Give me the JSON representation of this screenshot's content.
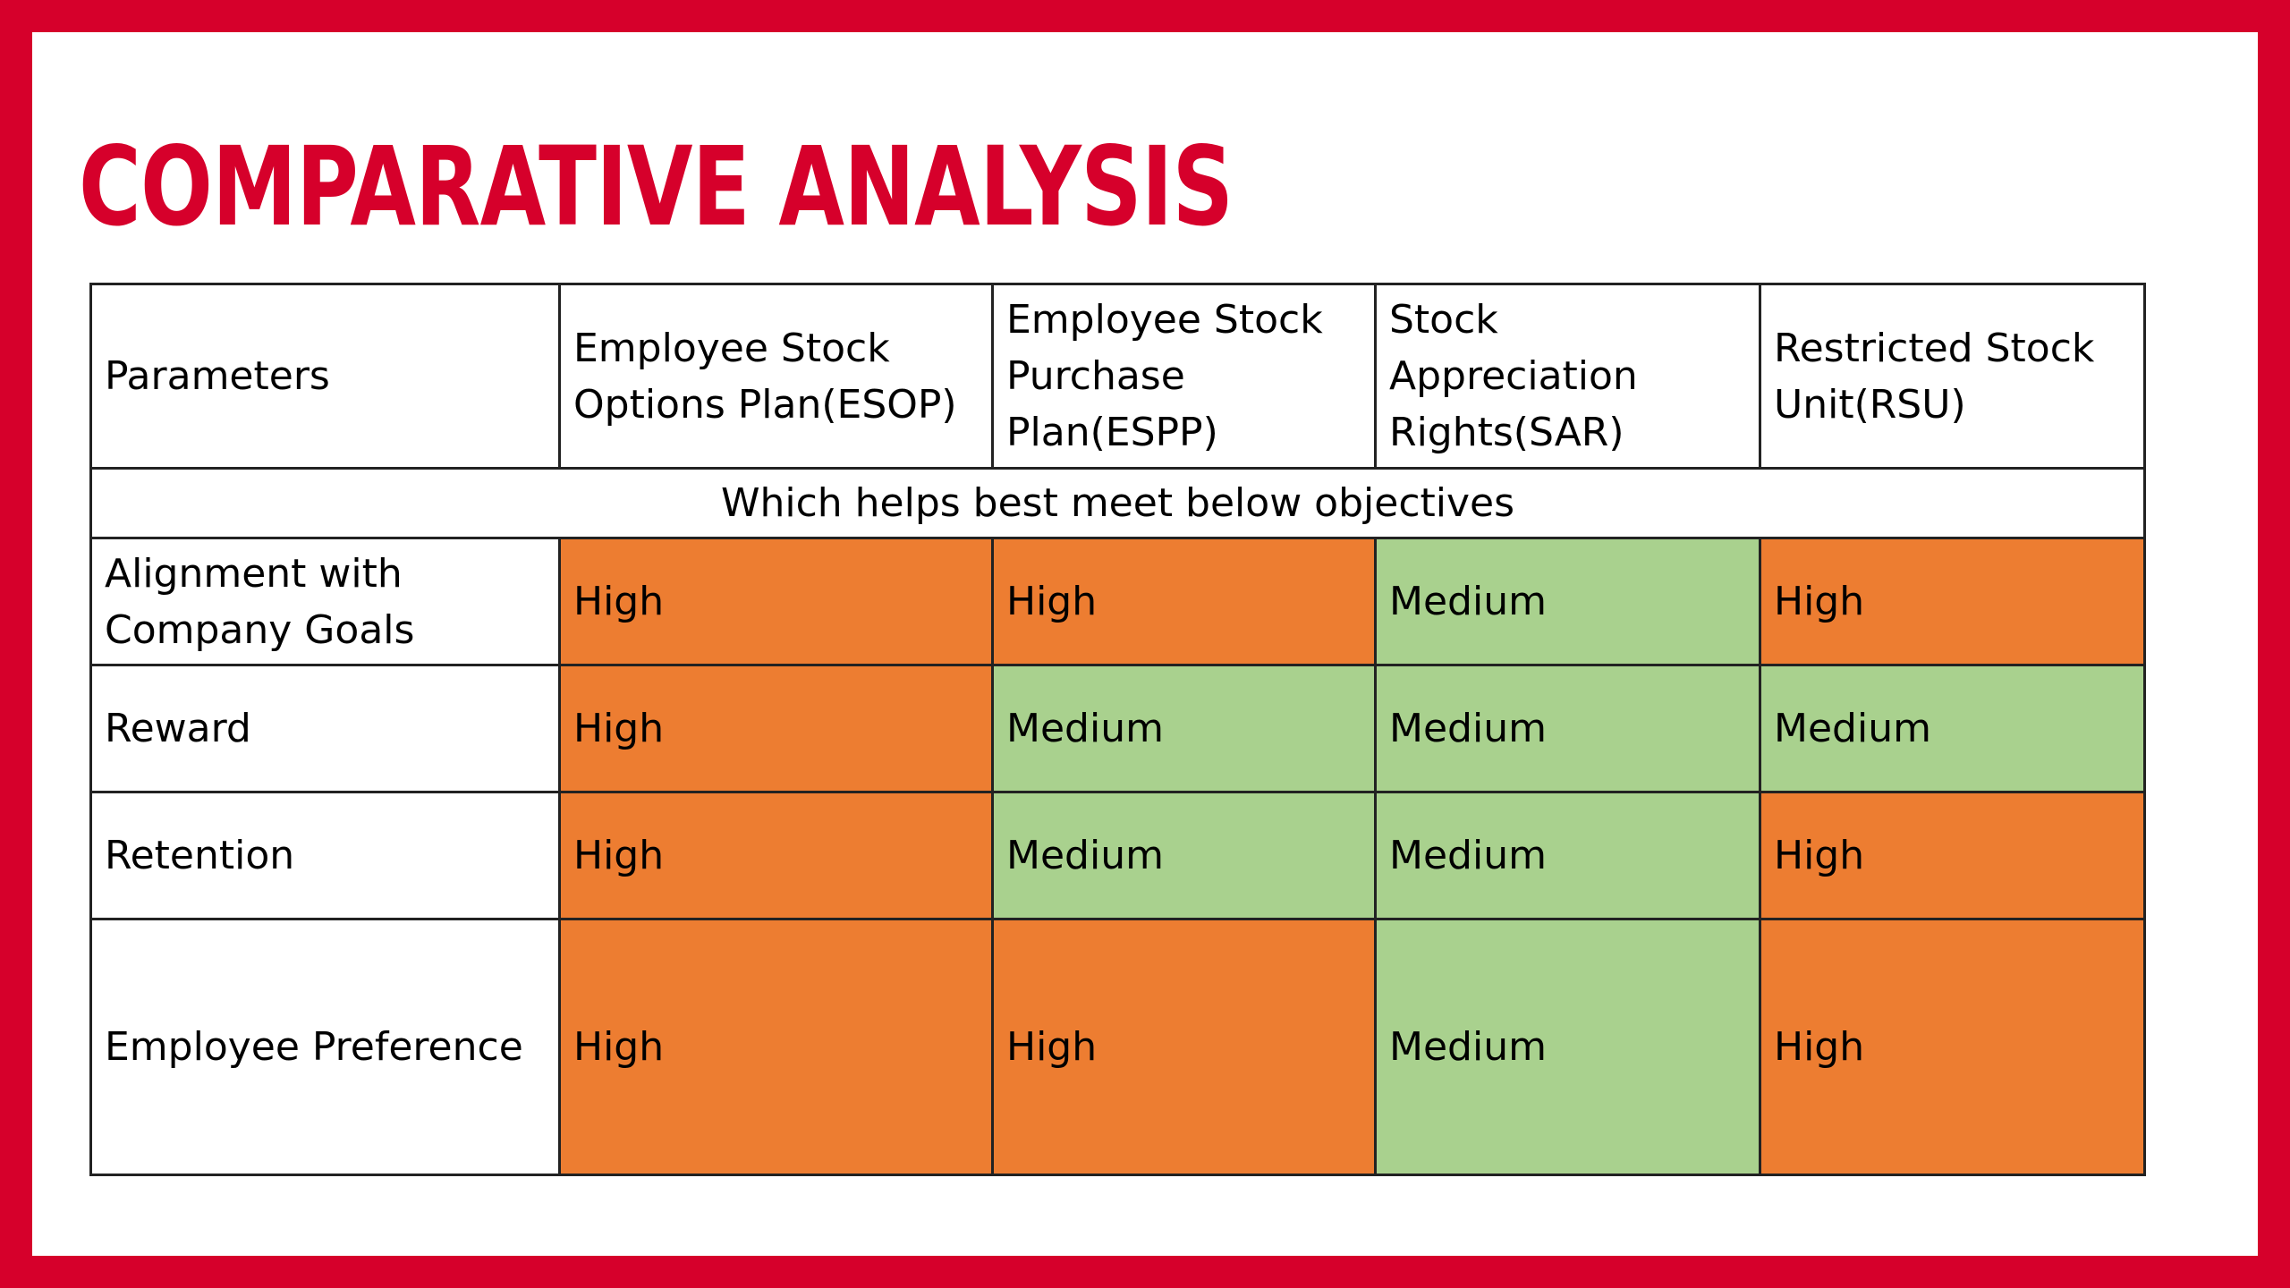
{
  "title": "COMPARATIVE ANALYSIS",
  "table": {
    "headers": [
      "Parameters",
      "Employee Stock Options Plan(ESOP)",
      "Employee Stock Purchase Plan(ESPP)",
      "Stock Appreciation Rights(SAR)",
      "Restricted Stock Unit(RSU)"
    ],
    "subheader": "Which helps best meet below objectives",
    "rows": [
      {
        "parameter": "Alignment with Company Goals",
        "values": [
          "High",
          "High",
          "Medium",
          "High"
        ]
      },
      {
        "parameter": "Reward",
        "values": [
          "High",
          "Medium",
          "Medium",
          "Medium"
        ]
      },
      {
        "parameter": "Retention",
        "values": [
          "High",
          "Medium",
          "Medium",
          "High"
        ]
      },
      {
        "parameter": "Employee Preference",
        "values": [
          "High",
          "High",
          "Medium",
          "High"
        ]
      }
    ]
  },
  "colors": {
    "frame": "#D6002B",
    "title": "#D6002B",
    "high": "#ED7D31",
    "medium": "#A9D18E"
  }
}
